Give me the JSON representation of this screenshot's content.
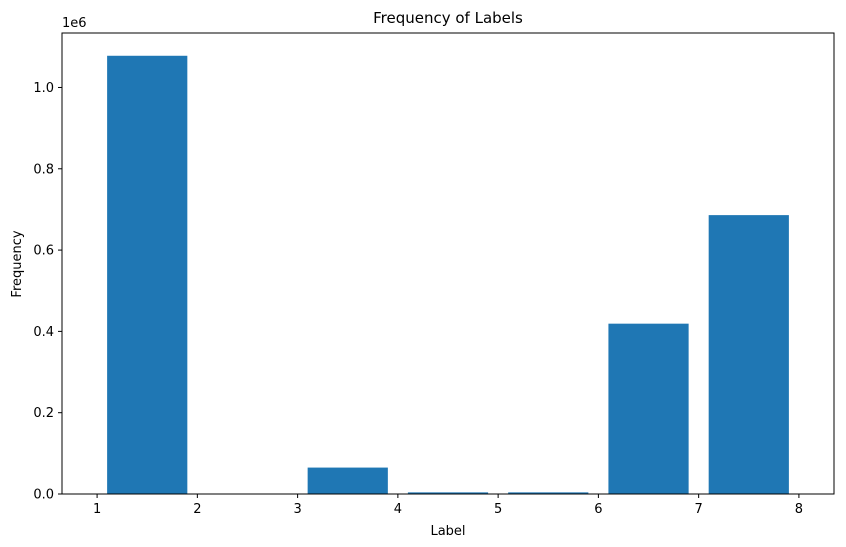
{
  "chart_data": {
    "type": "bar",
    "title": "Frequency of Labels",
    "xlabel": "Label",
    "ylabel": "Frequency",
    "y_offset_label": "1e6",
    "xlim": [
      0.65,
      8.35
    ],
    "ylim": [
      0,
      1.134
    ],
    "x_ticks": [
      1,
      2,
      3,
      4,
      5,
      6,
      7,
      8
    ],
    "x_tick_labels": [
      "1",
      "2",
      "3",
      "4",
      "5",
      "6",
      "7",
      "8"
    ],
    "y_ticks": [
      0.0,
      0.2,
      0.4,
      0.6,
      0.8,
      1.0
    ],
    "y_tick_labels": [
      "0.0",
      "0.2",
      "0.4",
      "0.6",
      "0.8",
      "1.0"
    ],
    "bars": [
      {
        "x_start": 1.1,
        "x_end": 1.9,
        "value": 1.078
      },
      {
        "x_start": 2.1,
        "x_end": 2.9,
        "value": 0.0
      },
      {
        "x_start": 3.1,
        "x_end": 3.9,
        "value": 0.065
      },
      {
        "x_start": 4.1,
        "x_end": 4.9,
        "value": 0.004
      },
      {
        "x_start": 5.1,
        "x_end": 5.9,
        "value": 0.004
      },
      {
        "x_start": 6.1,
        "x_end": 6.9,
        "value": 0.419
      },
      {
        "x_start": 7.1,
        "x_end": 7.9,
        "value": 0.686
      }
    ],
    "bar_color": "#1f77b4",
    "grid": false,
    "legend": "none"
  }
}
